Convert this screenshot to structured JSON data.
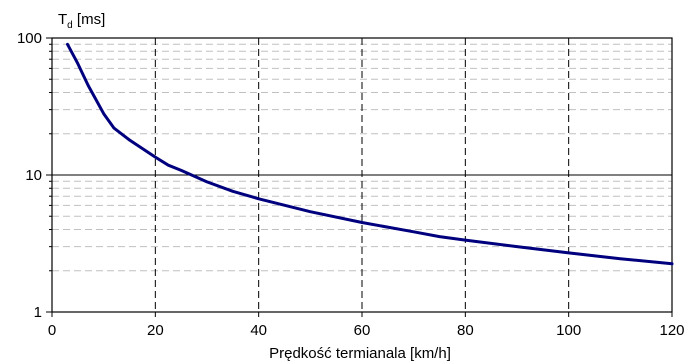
{
  "chart_data": {
    "type": "line",
    "title": "",
    "xlabel": "Prędkość termianala [km/h]",
    "ylabel_main": "T",
    "ylabel_sub": "d",
    "ylabel_unit": " [ms]",
    "xlim": [
      0,
      120
    ],
    "ylim": [
      1,
      100
    ],
    "yscale": "log",
    "x_ticks": [
      0,
      20,
      40,
      60,
      80,
      100,
      120
    ],
    "y_ticks": [
      1,
      10,
      100
    ],
    "grid": true,
    "legend": "none",
    "line_color": "#00007f",
    "series": [
      {
        "x": [
          3,
          5,
          7,
          10,
          12,
          15,
          20,
          22.5,
          25,
          30,
          35,
          40,
          50,
          60,
          70,
          75,
          80,
          90,
          100,
          110,
          120
        ],
        "y": [
          90,
          65,
          45,
          28,
          22,
          18,
          13.5,
          11.8,
          10.8,
          8.9,
          7.6,
          6.7,
          5.4,
          4.5,
          3.85,
          3.55,
          3.35,
          3.0,
          2.7,
          2.45,
          2.25
        ]
      }
    ]
  }
}
